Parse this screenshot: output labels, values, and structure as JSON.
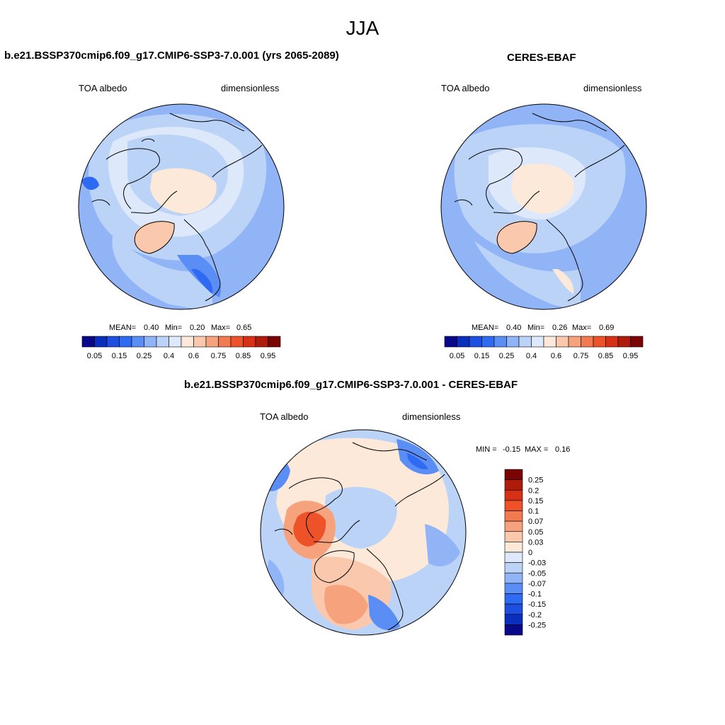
{
  "page": {
    "season": "JJA"
  },
  "panel_left": {
    "title": "b.e21.BSSP370cmip6.f09_g17.CMIP6-SSP3-7.0.001 (yrs 2065-2089)",
    "variable": "TOA albedo",
    "units": "dimensionless",
    "mean_label": "MEAN=",
    "mean_value": "0.40",
    "min_label": "Min=",
    "min_value": "0.20",
    "max_label": "Max=",
    "max_value": "0.65"
  },
  "panel_right": {
    "title": "CERES-EBAF",
    "variable": "TOA albedo",
    "units": "dimensionless",
    "mean_label": "MEAN=",
    "mean_value": "0.40",
    "min_label": "Min=",
    "min_value": "0.26",
    "max_label": "Max=",
    "max_value": "0.69"
  },
  "panel_diff": {
    "title": "b.e21.BSSP370cmip6.f09_g17.CMIP6-SSP3-7.0.001 - CERES-EBAF",
    "variable": "TOA albedo",
    "units": "dimensionless",
    "min_label": "MIN =",
    "min_value": "-0.15",
    "max_label": "MAX =",
    "max_value": "0.16"
  },
  "colorbar_abs": {
    "colors": [
      "#08088a",
      "#0a2fbd",
      "#1f4fe0",
      "#2f6af2",
      "#5b8ef5",
      "#91b4f7",
      "#bcd3f8",
      "#dde9fa",
      "#fde9d9",
      "#fac9ad",
      "#f6a27c",
      "#f27a50",
      "#ed5228",
      "#d63116",
      "#b01c0c",
      "#7a0403"
    ],
    "tick_labels": [
      "0.05",
      "0.15",
      "0.25",
      "0.4",
      "0.6",
      "0.75",
      "0.85",
      "0.95"
    ]
  },
  "colorbar_diff": {
    "colors": [
      "#08088a",
      "#0a2fbd",
      "#1f4fe0",
      "#2f6af2",
      "#5b8ef5",
      "#91b4f7",
      "#bcd3f8",
      "#dde9fa",
      "#fde9d9",
      "#fac9ad",
      "#f6a27c",
      "#f27a50",
      "#ed5228",
      "#d63116",
      "#b01c0c",
      "#7a0403"
    ],
    "tick_labels": [
      "0.25",
      "0.2",
      "0.15",
      "0.1",
      "0.07",
      "0.05",
      "0.03",
      "0",
      "-0.03",
      "-0.05",
      "-0.07",
      "-0.1",
      "-0.15",
      "-0.2",
      "-0.25"
    ]
  },
  "map_colors": {
    "ocean_mid": "#bcd3f8",
    "ocean_deep": "#91b4f7",
    "ice_cap": "#fde9d9",
    "light": "#dde9fa",
    "warm1": "#fac9ad",
    "warm2": "#f6a27c",
    "warm3": "#ed5228",
    "cool1": "#5b8ef5",
    "cool2": "#2f6af2"
  }
}
